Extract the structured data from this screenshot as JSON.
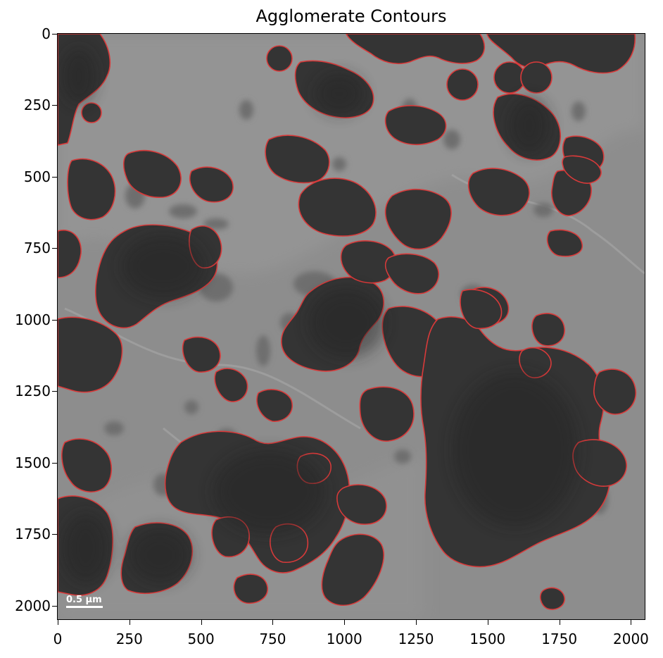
{
  "figure": {
    "title": "Agglomerate Contours",
    "scale_bar_label": "0.5 µm",
    "contour_color": "#e03a3a",
    "image_content": "grayscale electron micrograph of dark particle agglomerates with red contour outlines"
  },
  "axes": {
    "x_ticks": [
      "0",
      "250",
      "500",
      "750",
      "1000",
      "1250",
      "1500",
      "1750",
      "2000"
    ],
    "y_ticks": [
      "0",
      "250",
      "500",
      "750",
      "1000",
      "1250",
      "1500",
      "1750",
      "2000"
    ],
    "x_range": [
      0,
      2048
    ],
    "y_range": [
      0,
      2048
    ]
  }
}
